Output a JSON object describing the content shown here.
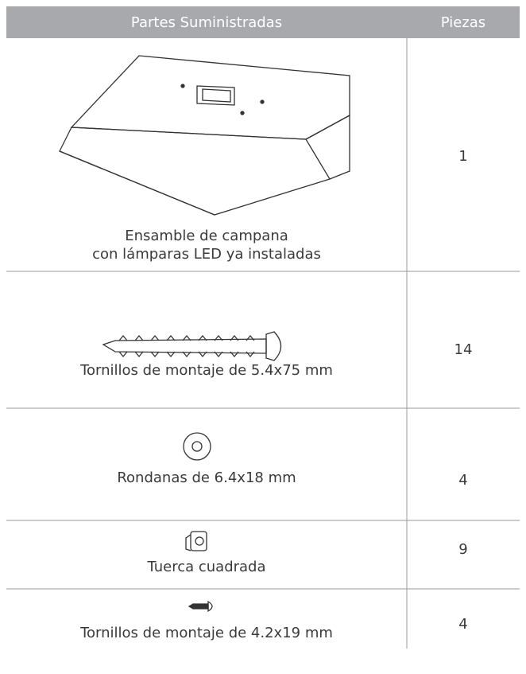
{
  "table": {
    "header": [
      "Partes Suministradas",
      "Piezas"
    ],
    "rows": [
      {
        "name_lines": [
          "Ensamble de campana",
          "con lámparas LED ya instaladas"
        ],
        "count": 1
      },
      {
        "name_lines": [
          "Tornillos de montaje de 5.4x75 mm"
        ],
        "count": 14
      },
      {
        "name_lines": [
          "Rondanas de 6.4x18 mm"
        ],
        "count": 4
      },
      {
        "name_lines": [
          "Tuerca cuadrada"
        ],
        "count": 9
      },
      {
        "name_lines": [
          "Tornillos de montaje de 4.2x19 mm"
        ],
        "count": 4
      }
    ]
  }
}
